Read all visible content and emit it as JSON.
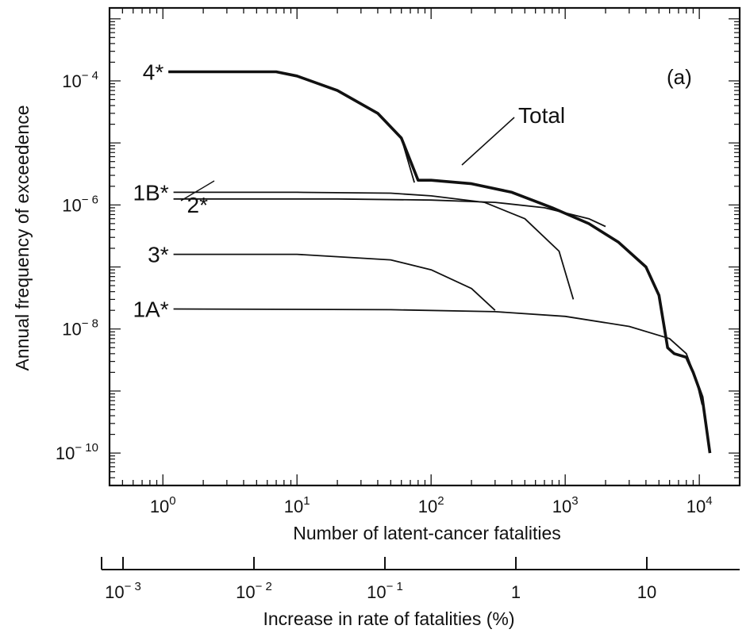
{
  "chart_data": {
    "type": "line",
    "panel_label": "(a)",
    "x_scale": "log",
    "y_scale": "log",
    "xlim": [
      0.4,
      20000
    ],
    "ylim": [
      3e-11,
      0.0015
    ],
    "xlabel": "Number of latent-cancer fatalities",
    "ylabel": "Annual frequency of exceedence",
    "x_ticks": [
      {
        "value": 1,
        "base": "10",
        "exp": "0"
      },
      {
        "value": 10,
        "base": "10",
        "exp": "1"
      },
      {
        "value": 100,
        "base": "10",
        "exp": "2"
      },
      {
        "value": 1000,
        "base": "10",
        "exp": "3"
      },
      {
        "value": 10000,
        "base": "10",
        "exp": "4"
      }
    ],
    "y_ticks": [
      {
        "value": 0.0001,
        "base": "10",
        "exp": "− 4"
      },
      {
        "value": 1e-06,
        "base": "10",
        "exp": "− 6"
      },
      {
        "value": 1e-08,
        "base": "10",
        "exp": "− 8"
      },
      {
        "value": 1e-10,
        "base": "10",
        "exp": "− 10"
      }
    ],
    "secondary_axis": {
      "label": "Increase in rate of fatalities (%)",
      "ticks": [
        {
          "label_base": "10",
          "label_exp": "− 3",
          "value": 0.001
        },
        {
          "label_base": "10",
          "label_exp": "− 2",
          "value": 0.01
        },
        {
          "label_base": "10",
          "label_exp": "− 1",
          "value": 0.1
        },
        {
          "label_base": "1",
          "label_exp": "",
          "value": 1
        },
        {
          "label_base": "10",
          "label_exp": "",
          "value": 10
        }
      ]
    },
    "series": [
      {
        "name": "4*",
        "bold": false,
        "points": [
          [
            1.1,
            0.00014
          ],
          [
            7,
            0.00014
          ],
          [
            10,
            0.00012
          ],
          [
            20,
            7e-05
          ],
          [
            40,
            3e-05
          ],
          [
            60,
            1.2e-05
          ],
          [
            75,
            2.3e-06
          ]
        ]
      },
      {
        "name": "1B*",
        "bold": false,
        "points": [
          [
            1.2,
            1.6e-06
          ],
          [
            10,
            1.6e-06
          ],
          [
            50,
            1.55e-06
          ],
          [
            100,
            1.4e-06
          ],
          [
            250,
            1.1e-06
          ],
          [
            500,
            6e-07
          ],
          [
            900,
            1.8e-07
          ],
          [
            1150,
            3e-08
          ]
        ]
      },
      {
        "name": "2*",
        "bold": false,
        "points": [
          [
            1.2,
            1.25e-06
          ],
          [
            20,
            1.25e-06
          ],
          [
            100,
            1.2e-06
          ],
          [
            300,
            1.1e-06
          ],
          [
            700,
            9e-07
          ],
          [
            1500,
            6e-07
          ],
          [
            2000,
            4.5e-07
          ]
        ]
      },
      {
        "name": "3*",
        "bold": false,
        "points": [
          [
            1.2,
            1.6e-07
          ],
          [
            10,
            1.6e-07
          ],
          [
            50,
            1.3e-07
          ],
          [
            100,
            9e-08
          ],
          [
            200,
            4.5e-08
          ],
          [
            300,
            2e-08
          ]
        ]
      },
      {
        "name": "1A*",
        "bold": false,
        "points": [
          [
            1.2,
            2.1e-08
          ],
          [
            50,
            2.05e-08
          ],
          [
            300,
            1.9e-08
          ],
          [
            1000,
            1.6e-08
          ],
          [
            3000,
            1.1e-08
          ],
          [
            6000,
            7e-09
          ],
          [
            8000,
            4e-09
          ],
          [
            9500,
            1.5e-09
          ],
          [
            10500,
            6e-10
          ]
        ]
      },
      {
        "name": "Total",
        "bold": true,
        "points": [
          [
            1.1,
            0.00014
          ],
          [
            7,
            0.00014
          ],
          [
            10,
            0.00012
          ],
          [
            20,
            7e-05
          ],
          [
            40,
            3e-05
          ],
          [
            60,
            1.2e-05
          ],
          [
            80,
            2.5e-06
          ],
          [
            100,
            2.5e-06
          ],
          [
            200,
            2.2e-06
          ],
          [
            400,
            1.6e-06
          ],
          [
            800,
            9e-07
          ],
          [
            1500,
            5e-07
          ],
          [
            2500,
            2.5e-07
          ],
          [
            4000,
            1e-07
          ],
          [
            5000,
            3.5e-08
          ],
          [
            5800,
            5e-09
          ],
          [
            6500,
            4e-09
          ],
          [
            8000,
            3.5e-09
          ],
          [
            9000,
            2e-09
          ],
          [
            10500,
            8e-10
          ],
          [
            12000,
            1e-10
          ]
        ]
      }
    ]
  }
}
